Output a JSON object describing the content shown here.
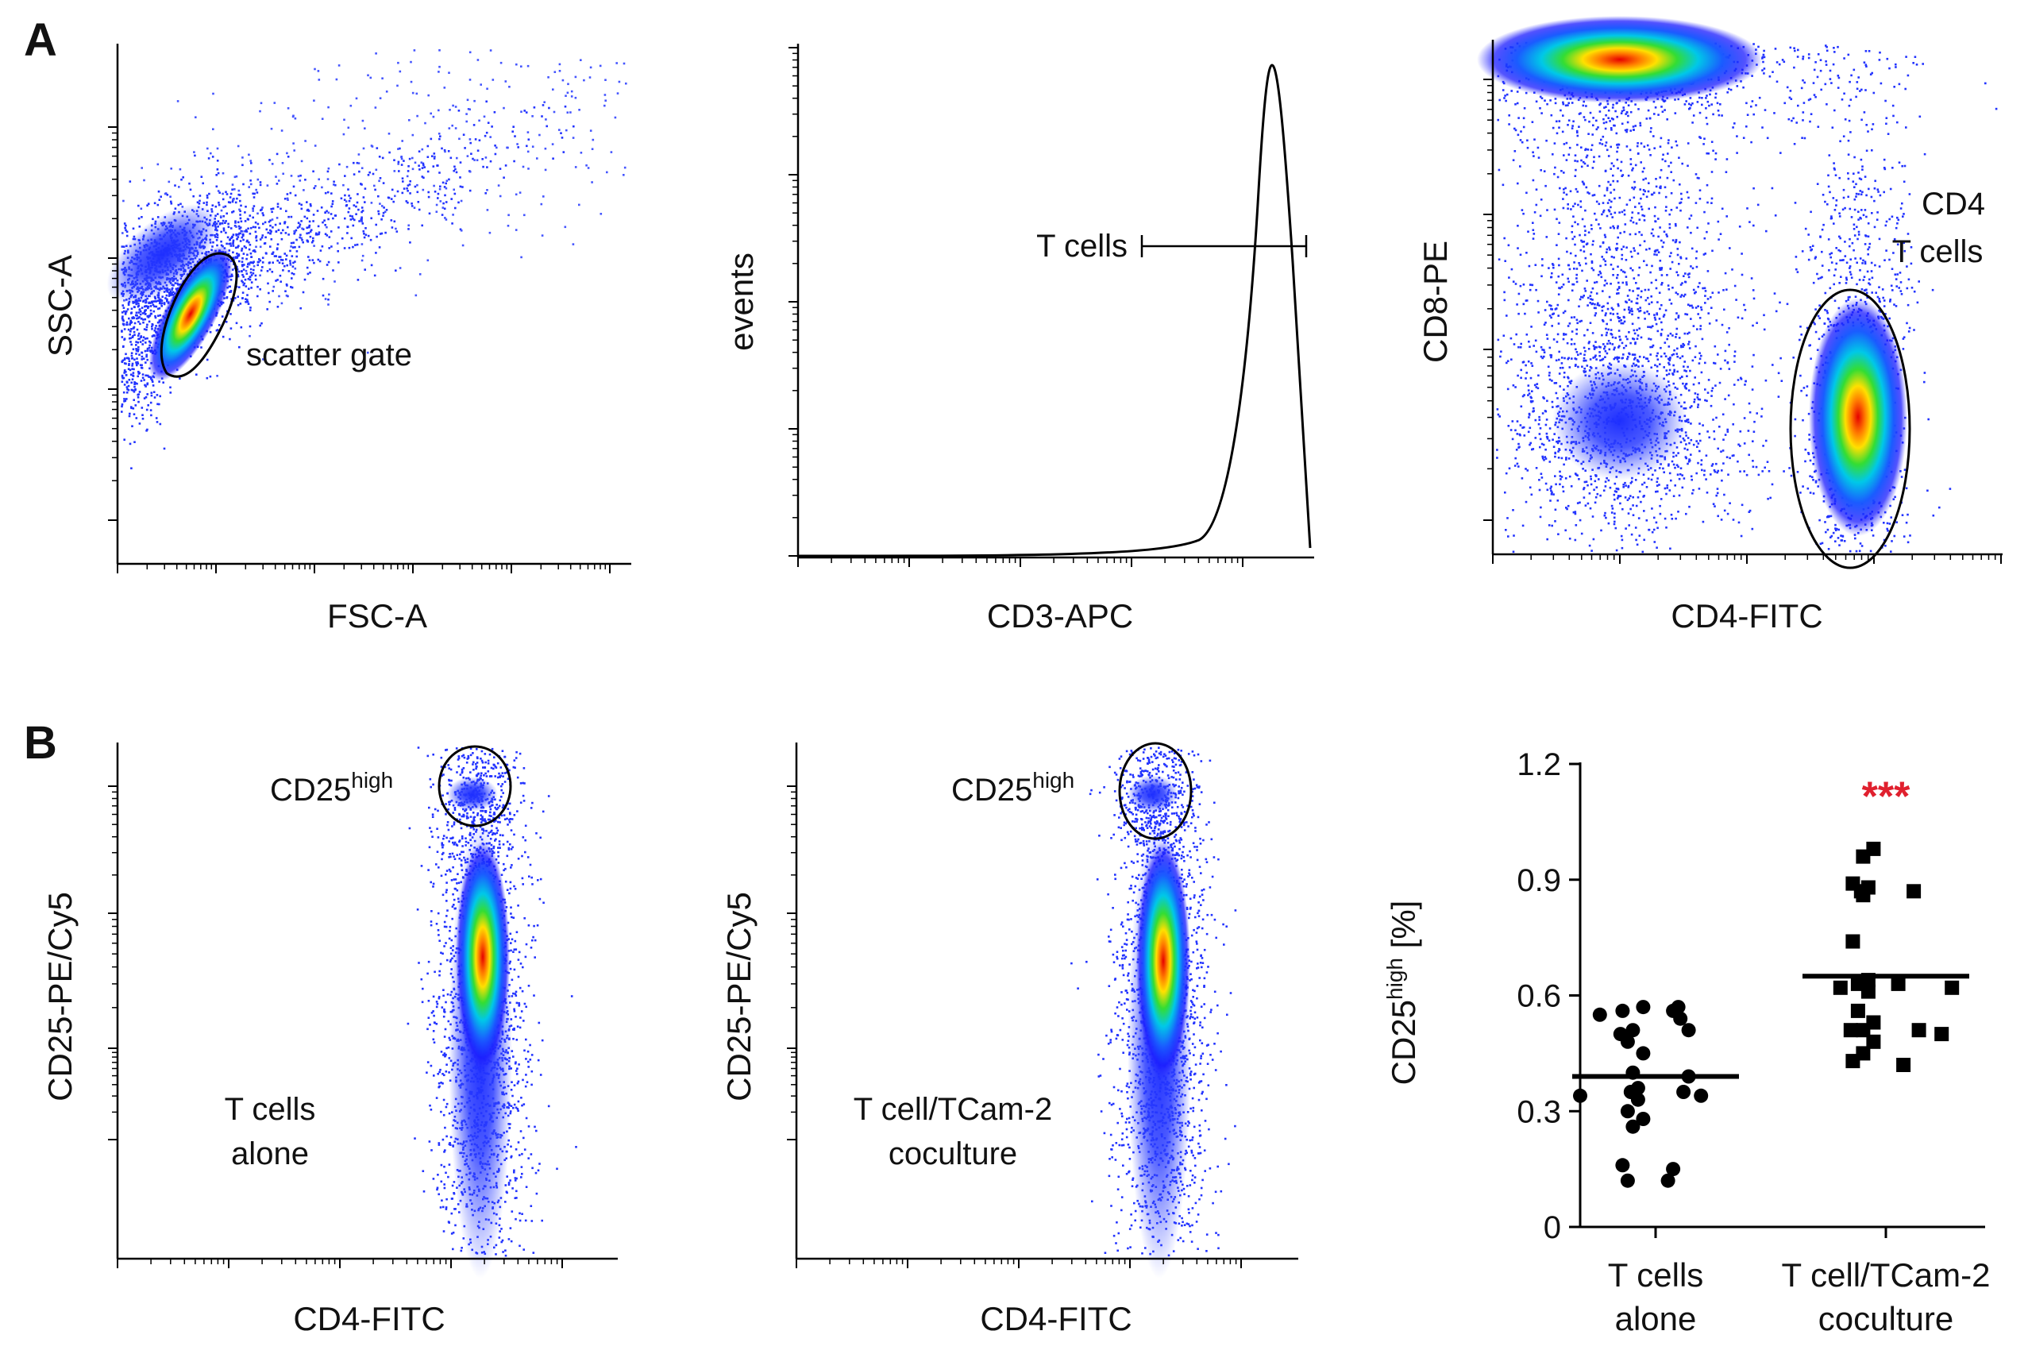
{
  "panels": {
    "A": {
      "letter": "A",
      "scatter_plot": {
        "xlabel": "FSC-A",
        "ylabel": "SSC-A",
        "gate_label": "scatter gate"
      },
      "histogram": {
        "xlabel": "CD3-APC",
        "ylabel": "events",
        "gate_label": "T cells"
      },
      "cd4_cd8_plot": {
        "xlabel": "CD4-FITC",
        "ylabel": "CD8-PE",
        "gate_label_line1": "CD4",
        "gate_label_line2": "T cells"
      }
    },
    "B": {
      "letter": "B",
      "alone_plot": {
        "xlabel": "CD4-FITC",
        "ylabel": "CD25-PE/Cy5",
        "gate_label": "CD25",
        "gate_label_sup": "high",
        "condition_line1": "T cells",
        "condition_line2": "alone"
      },
      "coculture_plot": {
        "xlabel": "CD4-FITC",
        "ylabel": "CD25-PE/Cy5",
        "gate_label": "CD25",
        "gate_label_sup": "high",
        "condition_line1": "T cell/TCam-2",
        "condition_line2": "coculture"
      }
    }
  },
  "chart_data": {
    "type": "scatter",
    "title": "",
    "ylabel": "CD25",
    "ylabel_sup": "high",
    "ylabel_unit": " [%]",
    "ylim": [
      0,
      1.2
    ],
    "yticks": [
      {
        "value": 0,
        "label": "0"
      },
      {
        "value": 0.3,
        "label": "0.3"
      },
      {
        "value": 0.6,
        "label": "0.6"
      },
      {
        "value": 0.9,
        "label": "0.9"
      },
      {
        "value": 1.2,
        "label": "1.2"
      }
    ],
    "significance": "***",
    "significance_color": "#e0202e",
    "groups": [
      {
        "name_line1": "T cells",
        "name_line2": "alone",
        "marker": "circle",
        "mean": 0.39,
        "points": [
          0.57,
          0.57,
          0.56,
          0.56,
          0.55,
          0.54,
          0.51,
          0.51,
          0.5,
          0.48,
          0.45,
          0.4,
          0.39,
          0.36,
          0.35,
          0.35,
          0.34,
          0.34,
          0.33,
          0.3,
          0.28,
          0.26,
          0.16,
          0.15,
          0.12,
          0.12
        ]
      },
      {
        "name_line1": "T cell/TCam-2",
        "name_line2": "coculture",
        "marker": "square",
        "mean": 0.65,
        "points": [
          0.98,
          0.96,
          0.89,
          0.88,
          0.87,
          0.87,
          0.86,
          0.74,
          0.64,
          0.63,
          0.63,
          0.62,
          0.62,
          0.61,
          0.56,
          0.53,
          0.51,
          0.51,
          0.51,
          0.5,
          0.48,
          0.45,
          0.43,
          0.42
        ]
      }
    ]
  }
}
